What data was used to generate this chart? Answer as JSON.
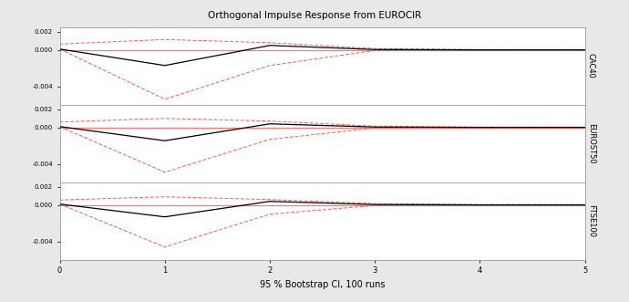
{
  "title": "Orthogonal Impulse Response from EUROCIR",
  "xlabel": "95 % Bootstrap CI, 100 runs",
  "subplots": [
    {
      "ylabel": "CAC40",
      "ylim": [
        -0.006,
        0.0025
      ],
      "yticks": [
        -0.004,
        0.0,
        0.002
      ],
      "ytick_labels": [
        "-0.004",
        "0.000",
        "0.002"
      ]
    },
    {
      "ylabel": "EUROST50",
      "ylim": [
        -0.006,
        0.0025
      ],
      "yticks": [
        -0.004,
        0.0,
        0.002
      ],
      "ytick_labels": [
        "-0.004",
        "0.000",
        "0.002"
      ]
    },
    {
      "ylabel": "FTSE100",
      "ylim": [
        -0.006,
        0.0025
      ],
      "yticks": [
        -0.004,
        0.0,
        0.002
      ],
      "ytick_labels": [
        "-0.004",
        "0.000",
        "0.002"
      ]
    }
  ],
  "xlim": [
    0,
    5
  ],
  "xticks": [
    0,
    1,
    2,
    3,
    4,
    5
  ],
  "x_irf": [
    0,
    1,
    2,
    3,
    4,
    5
  ],
  "irf_CAC40": [
    0.0001,
    -0.0017,
    0.0005,
    5e-05,
    1e-05,
    1e-05
  ],
  "upper_CAC40": [
    0.00065,
    0.00115,
    0.0008,
    0.00015,
    5e-05,
    5e-05
  ],
  "lower_CAC40": [
    0.0001,
    -0.0054,
    -0.0017,
    -5e-05,
    -2e-05,
    -1e-05
  ],
  "irf_EUROST50": [
    0.0001,
    -0.00145,
    0.0004,
    5e-05,
    1e-05,
    1e-05
  ],
  "upper_EUROST50": [
    0.0006,
    0.001,
    0.0007,
    0.00015,
    5e-05,
    5e-05
  ],
  "lower_EUROST50": [
    0.0001,
    -0.0049,
    -0.0013,
    -5e-05,
    -2e-05,
    -1e-05
  ],
  "irf_FTSE100": [
    0.0001,
    -0.0013,
    0.0004,
    5e-05,
    1e-05,
    1e-05
  ],
  "upper_FTSE100": [
    0.00055,
    0.0009,
    0.0006,
    0.00015,
    5e-05,
    5e-05
  ],
  "lower_FTSE100": [
    0.0001,
    -0.0046,
    -0.001,
    -5e-05,
    -2e-05,
    -1e-05
  ],
  "zero_line_color": "#FF7777",
  "irf_color": "#000000",
  "ci_color": "#FF5555",
  "bg_color": "#E8E8E8",
  "panel_bg": "#FFFFFF"
}
